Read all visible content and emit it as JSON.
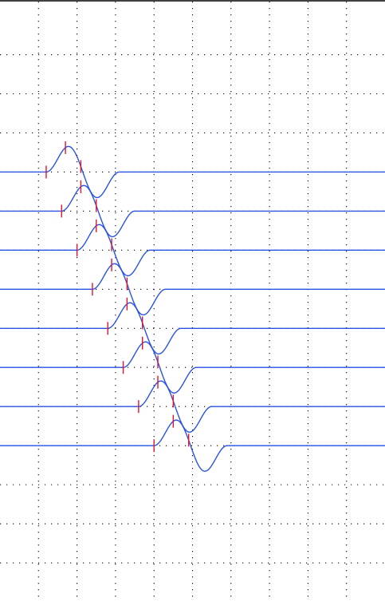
{
  "chart_data": {
    "type": "line",
    "title": "",
    "xlabel": "",
    "ylabel": "",
    "grid": true,
    "grid_style": "dotted",
    "line_color": "#2a52e6",
    "marker_color": "#e0142a",
    "grid_color": "#000000",
    "xlim": [
      0,
      10
    ],
    "ylim": [
      -15,
      0.4
    ],
    "x_grid": [
      1,
      2,
      3,
      4,
      5,
      6,
      7,
      8,
      9
    ],
    "y_grid": [
      -1,
      -2,
      -3,
      -4,
      -5,
      -6,
      -7,
      -8,
      -9,
      -10,
      -11,
      -12,
      -13,
      -14
    ],
    "series": [
      {
        "baseline": -4.0,
        "wave_start": 1.2,
        "wave_end": 3.1,
        "amplitude": 0.85,
        "markers": [
          1.2,
          1.7,
          2.1
        ]
      },
      {
        "baseline": -5.0,
        "wave_start": 1.6,
        "wave_end": 3.5,
        "amplitude": 0.85,
        "markers": [
          1.6,
          2.1,
          2.5
        ]
      },
      {
        "baseline": -6.0,
        "wave_start": 2.0,
        "wave_end": 3.9,
        "amplitude": 0.85,
        "markers": [
          2.0,
          2.5,
          2.9
        ]
      },
      {
        "baseline": -7.0,
        "wave_start": 2.4,
        "wave_end": 4.3,
        "amplitude": 0.85,
        "markers": [
          2.4,
          2.9,
          3.3
        ]
      },
      {
        "baseline": -8.0,
        "wave_start": 2.8,
        "wave_end": 4.7,
        "amplitude": 0.85,
        "markers": [
          2.8,
          3.3,
          3.7
        ]
      },
      {
        "baseline": -9.0,
        "wave_start": 3.2,
        "wave_end": 5.1,
        "amplitude": 0.85,
        "markers": [
          3.2,
          3.7,
          4.1
        ]
      },
      {
        "baseline": -10.0,
        "wave_start": 3.6,
        "wave_end": 5.5,
        "amplitude": 0.85,
        "markers": [
          3.6,
          4.1,
          4.5
        ]
      },
      {
        "baseline": -11.0,
        "wave_start": 4.0,
        "wave_end": 5.9,
        "amplitude": 0.85,
        "markers": [
          4.0,
          4.5,
          4.9
        ]
      }
    ]
  }
}
